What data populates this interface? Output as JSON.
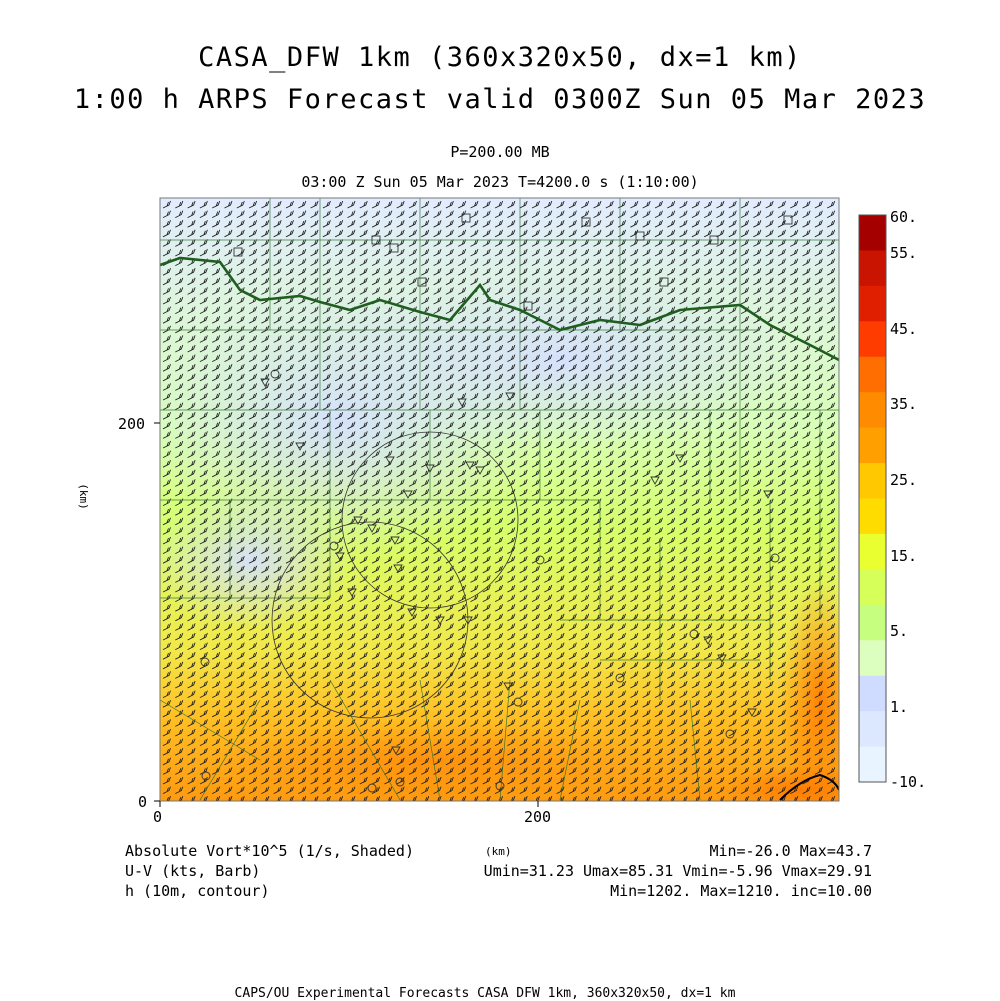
{
  "header": {
    "title_line1": "CASA_DFW 1km (360x320x50, dx=1 km)",
    "title_line2": "1:00 h ARPS Forecast valid 0300Z Sun 05 Mar 2023",
    "level": "P=200.00 MB",
    "time": "03:00 Z Sun 05 Mar 2023    T=4200.0 s (1:10:00)"
  },
  "axes": {
    "y_unit": "(km)",
    "x_unit": "(km)",
    "y_ticks": [
      "200",
      "0"
    ],
    "x_ticks": [
      "0",
      "200"
    ]
  },
  "colorbar": {
    "labels": [
      "60.",
      "55.",
      "45.",
      "35.",
      "25.",
      "15.",
      "5.",
      "1.",
      "-10."
    ],
    "colors": [
      "#a50000",
      "#c81400",
      "#e01e00",
      "#ff3c00",
      "#ff6e00",
      "#ff8c00",
      "#ffa000",
      "#ffc800",
      "#ffdc00",
      "#eaff30",
      "#d6ff5a",
      "#c6ff80",
      "#dcffc0",
      "#d0dcff",
      "#dce8ff",
      "#e8f4ff"
    ]
  },
  "legend": {
    "vort": "Absolute Vort*10^5 (1/s, Shaded)",
    "wind": "U-V (kts, Barb)",
    "height": "h (10m, contour)",
    "vort_range": "Min=-26.0 Max=43.7",
    "wind_range": "Umin=31.23 Umax=85.31 Vmin=-5.96 Vmax=29.91",
    "height_range": "Min=1202. Max=1210. inc=10.00"
  },
  "footer": "CAPS/OU Experimental Forecasts  CASA DFW 1km, 360x320x50, dx=1 km",
  "map_features": {
    "boundary": "county-lines",
    "river": "Red River",
    "radar_rings": 2,
    "station_markers": "triangles-circles-squares"
  }
}
